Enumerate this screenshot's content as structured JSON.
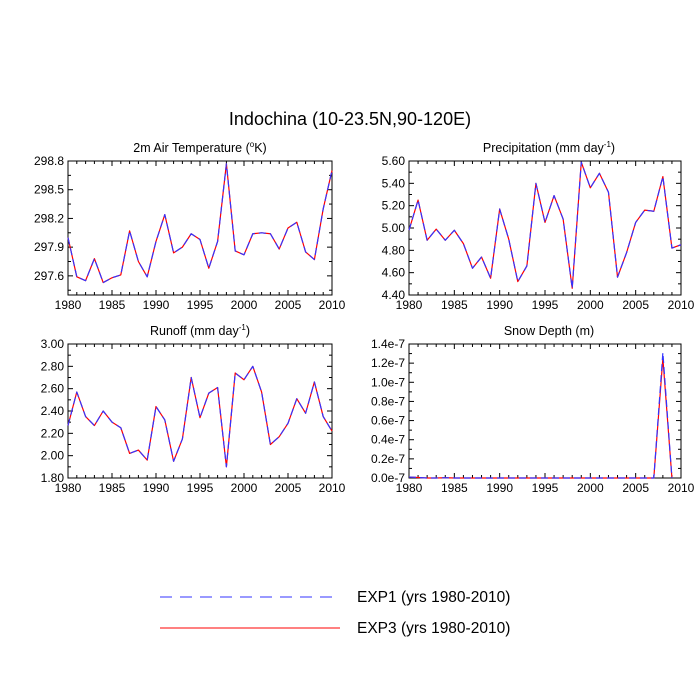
{
  "figure": {
    "title": "Indochina (10-23.5N,90-120E)",
    "legend": [
      {
        "label": "EXP1 (yrs 1980-2010)",
        "color": "#3333ff",
        "dash": "dashed"
      },
      {
        "label": "EXP3 (yrs 1980-2010)",
        "color": "#ff0000",
        "dash": "solid"
      }
    ]
  },
  "chart_data": [
    {
      "type": "line",
      "title_main": "2m Air Temperature (",
      "title_sup": "o",
      "title_after": "K)",
      "x": [
        1980,
        1981,
        1982,
        1983,
        1984,
        1985,
        1986,
        1987,
        1988,
        1989,
        1990,
        1991,
        1992,
        1993,
        1994,
        1995,
        1996,
        1997,
        1998,
        1999,
        2000,
        2001,
        2002,
        2003,
        2004,
        2005,
        2006,
        2007,
        2008,
        2009,
        2010
      ],
      "xlim": [
        1980,
        2010
      ],
      "ylim": [
        297.4,
        298.8
      ],
      "xticks": [
        "1980",
        "1985",
        "1990",
        "1995",
        "2000",
        "2005",
        "2010"
      ],
      "yticks": [
        "297.6",
        "297.9",
        "298.2",
        "298.5",
        "298.8"
      ],
      "series": [
        {
          "name": "EXP1 (yrs 1980-2010)",
          "values": [
            298.0,
            297.59,
            297.55,
            297.78,
            297.53,
            297.58,
            297.61,
            298.07,
            297.75,
            297.59,
            297.96,
            298.24,
            297.84,
            297.9,
            298.04,
            297.98,
            297.68,
            297.96,
            298.77,
            297.86,
            297.82,
            298.04,
            298.05,
            298.04,
            297.88,
            298.1,
            298.16,
            297.85,
            297.77,
            298.3,
            298.7
          ]
        },
        {
          "name": "EXP3 (yrs 1980-2010)",
          "values": [
            298.0,
            297.59,
            297.55,
            297.78,
            297.53,
            297.58,
            297.61,
            298.07,
            297.75,
            297.59,
            297.96,
            298.24,
            297.84,
            297.9,
            298.04,
            297.98,
            297.68,
            297.96,
            298.77,
            297.86,
            297.82,
            298.04,
            298.05,
            298.04,
            297.88,
            298.1,
            298.16,
            297.85,
            297.77,
            298.3,
            298.7
          ]
        }
      ]
    },
    {
      "type": "line",
      "title_main": "Precipitation (mm day",
      "title_sup": "-1",
      "title_after": ")",
      "x": [
        1980,
        1981,
        1982,
        1983,
        1984,
        1985,
        1986,
        1987,
        1988,
        1989,
        1990,
        1991,
        1992,
        1993,
        1994,
        1995,
        1996,
        1997,
        1998,
        1999,
        2000,
        2001,
        2002,
        2003,
        2004,
        2005,
        2006,
        2007,
        2008,
        2009,
        2010
      ],
      "xlim": [
        1980,
        2010
      ],
      "ylim": [
        4.4,
        5.6
      ],
      "xticks": [
        "1980",
        "1985",
        "1990",
        "1995",
        "2000",
        "2005",
        "2010"
      ],
      "yticks": [
        "4.40",
        "4.60",
        "4.80",
        "5.00",
        "5.20",
        "5.40",
        "5.60"
      ],
      "series": [
        {
          "name": "EXP1 (yrs 1980-2010)",
          "values": [
            4.98,
            5.25,
            4.89,
            4.99,
            4.89,
            4.98,
            4.86,
            4.64,
            4.74,
            4.55,
            5.17,
            4.9,
            4.52,
            4.66,
            5.4,
            5.05,
            5.29,
            5.08,
            4.46,
            5.59,
            5.36,
            5.49,
            5.32,
            4.56,
            4.78,
            5.05,
            5.16,
            5.15,
            5.46,
            4.82,
            4.85
          ]
        },
        {
          "name": "EXP3 (yrs 1980-2010)",
          "values": [
            4.98,
            5.25,
            4.89,
            4.99,
            4.89,
            4.98,
            4.86,
            4.64,
            4.74,
            4.55,
            5.17,
            4.9,
            4.52,
            4.66,
            5.4,
            5.05,
            5.29,
            5.08,
            4.46,
            5.59,
            5.36,
            5.49,
            5.32,
            4.56,
            4.78,
            5.05,
            5.16,
            5.15,
            5.46,
            4.82,
            4.85
          ]
        }
      ]
    },
    {
      "type": "line",
      "title_main": "Runoff (mm day",
      "title_sup": "-1",
      "title_after": ")",
      "x": [
        1980,
        1981,
        1982,
        1983,
        1984,
        1985,
        1986,
        1987,
        1988,
        1989,
        1990,
        1991,
        1992,
        1993,
        1994,
        1995,
        1996,
        1997,
        1998,
        1999,
        2000,
        2001,
        2002,
        2003,
        2004,
        2005,
        2006,
        2007,
        2008,
        2009,
        2010
      ],
      "xlim": [
        1980,
        2010
      ],
      "ylim": [
        1.8,
        3.0
      ],
      "xticks": [
        "1980",
        "1985",
        "1990",
        "1995",
        "2000",
        "2005",
        "2010"
      ],
      "yticks": [
        "1.80",
        "2.00",
        "2.20",
        "2.40",
        "2.60",
        "2.80",
        "3.00"
      ],
      "series": [
        {
          "name": "EXP1 (yrs 1980-2010)",
          "values": [
            2.27,
            2.57,
            2.35,
            2.27,
            2.4,
            2.3,
            2.25,
            2.02,
            2.05,
            1.96,
            2.44,
            2.32,
            1.95,
            2.15,
            2.7,
            2.34,
            2.56,
            2.61,
            1.9,
            2.74,
            2.68,
            2.8,
            2.57,
            2.1,
            2.17,
            2.29,
            2.51,
            2.38,
            2.66,
            2.35,
            2.22
          ]
        },
        {
          "name": "EXP3 (yrs 1980-2010)",
          "values": [
            2.27,
            2.57,
            2.35,
            2.27,
            2.4,
            2.3,
            2.25,
            2.02,
            2.05,
            1.96,
            2.44,
            2.32,
            1.95,
            2.15,
            2.7,
            2.34,
            2.56,
            2.61,
            1.9,
            2.74,
            2.68,
            2.8,
            2.57,
            2.1,
            2.17,
            2.29,
            2.51,
            2.38,
            2.66,
            2.35,
            2.22
          ]
        }
      ]
    },
    {
      "type": "line",
      "title_main": "Snow Depth (m)",
      "title_sup": "",
      "title_after": "",
      "x": [
        1980,
        1981,
        1982,
        1983,
        1984,
        1985,
        1986,
        1987,
        1988,
        1989,
        1990,
        1991,
        1992,
        1993,
        1994,
        1995,
        1996,
        1997,
        1998,
        1999,
        2000,
        2001,
        2002,
        2003,
        2004,
        2005,
        2006,
        2007,
        2008,
        2009,
        2010
      ],
      "xlim": [
        1980,
        2010
      ],
      "ylim": [
        0,
        1.4e-07
      ],
      "xticks": [
        "1980",
        "1985",
        "1990",
        "1995",
        "2000",
        "2005",
        "2010"
      ],
      "yticks": [
        "0.0e-7",
        "0.2e-7",
        "0.4e-7",
        "0.6e-7",
        "0.8e-7",
        "1.0e-7",
        "1.2e-7",
        "1.4e-7"
      ],
      "series": [
        {
          "name": "EXP1 (yrs 1980-2010)",
          "values": [
            1e-09,
            5e-10,
            0,
            0,
            3e-10,
            0,
            0,
            0,
            0,
            0,
            0,
            0,
            0,
            0,
            0,
            0,
            0,
            0,
            0,
            0,
            0,
            0,
            0,
            0,
            0,
            0,
            0,
            0,
            1.31e-07,
            0,
            null
          ]
        },
        {
          "name": "EXP3 (yrs 1980-2010)",
          "values": [
            1e-09,
            5e-10,
            0,
            0,
            3e-10,
            0,
            0,
            0,
            0,
            0,
            0,
            0,
            0,
            0,
            0,
            0,
            0,
            0,
            0,
            0,
            0,
            0,
            0,
            0,
            0,
            0,
            0,
            0,
            1.25e-07,
            0,
            null
          ]
        }
      ]
    }
  ]
}
